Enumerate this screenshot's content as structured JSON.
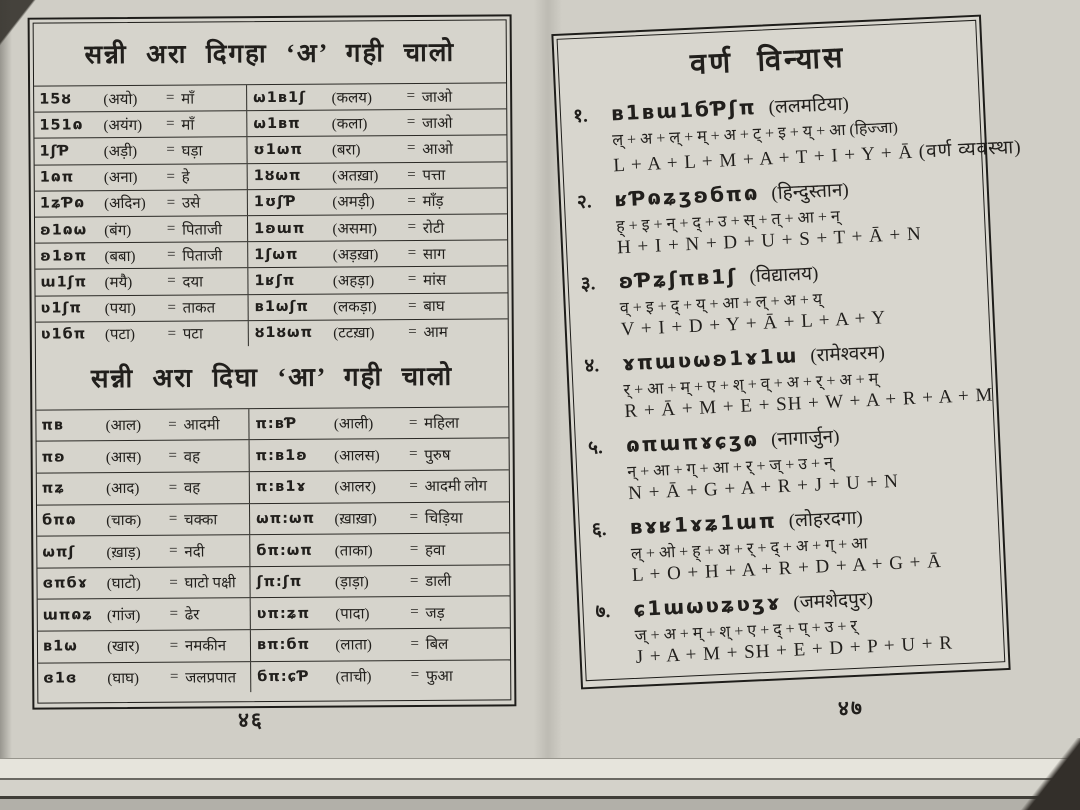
{
  "colors": {
    "paper": "#d6d4cc",
    "ink": "#211f1c",
    "shadow": "#45423c"
  },
  "ui": {
    "equals": "="
  },
  "left": {
    "page_number": "४६",
    "section_a": {
      "title": "सन्नी अरा दिगहा ‘अ’ गही चालो",
      "rows": [
        {
          "c1": {
            "script": "15ȣ",
            "roman": "(अयो)",
            "meaning": "माँ"
          },
          "c2": {
            "script": "ω1ʙ1ʃ",
            "roman": "(कलय)",
            "meaning": "जाओ"
          }
        },
        {
          "c1": {
            "script": "151ɷ",
            "roman": "(अयंग)",
            "meaning": "माँ"
          },
          "c2": {
            "script": "ω1ʙπ",
            "roman": "(कला)",
            "meaning": "जाओ"
          }
        },
        {
          "c1": {
            "script": "1ʃƤ",
            "roman": "(अड़ी)",
            "meaning": "घड़ा"
          },
          "c2": {
            "script": "ʊ1ωπ",
            "roman": "(बरा)",
            "meaning": "आओ"
          }
        },
        {
          "c1": {
            "script": "1ɷπ",
            "roman": "(अना)",
            "meaning": "हे"
          },
          "c2": {
            "script": "1ȣωπ",
            "roman": "(अतख़ा)",
            "meaning": "पत्ता"
          }
        },
        {
          "c1": {
            "script": "1ʑƤɷ",
            "roman": "(अदिन)",
            "meaning": "उसे"
          },
          "c2": {
            "script": "1ʊʃƤ",
            "roman": "(अमड़ी)",
            "meaning": "माँड़"
          }
        },
        {
          "c1": {
            "script": "ʚ1ɷω",
            "roman": "(बंग)",
            "meaning": "पिताजी"
          },
          "c2": {
            "script": "1ʚɯπ",
            "roman": "(असमा)",
            "meaning": "रोटी"
          }
        },
        {
          "c1": {
            "script": "ʚ1ʚπ",
            "roman": "(बबा)",
            "meaning": "पिताजी"
          },
          "c2": {
            "script": "1ʃωπ",
            "roman": "(अड़ख़ा)",
            "meaning": "साग"
          }
        },
        {
          "c1": {
            "script": "ɯ1ʃπ",
            "roman": "(मयै)",
            "meaning": "दया"
          },
          "c2": {
            "script": "1ʁʃπ",
            "roman": "(अहड़ा)",
            "meaning": "मांस"
          }
        },
        {
          "c1": {
            "script": "ʋ1ʃπ",
            "roman": "(पया)",
            "meaning": "ताकत"
          },
          "c2": {
            "script": "ʙ1ωʃπ",
            "roman": "(लकड़ा)",
            "meaning": "बाघ"
          }
        },
        {
          "c1": {
            "script": "ʋ1бπ",
            "roman": "(पटा)",
            "meaning": "पटा"
          },
          "c2": {
            "script": "ȣ1ȣωπ",
            "roman": "(टटख़ा)",
            "meaning": "आम"
          }
        }
      ]
    },
    "section_aa": {
      "title": "सन्नी अरा दिघा ‘आ’ गही चालो",
      "rows": [
        {
          "c1": {
            "script": "πʙ",
            "roman": "(आल)",
            "meaning": "आदमी"
          },
          "c2": {
            "script": "π:ʙƤ",
            "roman": "(आली)",
            "meaning": "महिला"
          }
        },
        {
          "c1": {
            "script": "πʚ",
            "roman": "(आस)",
            "meaning": "वह"
          },
          "c2": {
            "script": "π:ʙ1ʚ",
            "roman": "(आलस)",
            "meaning": "पुरुष"
          }
        },
        {
          "c1": {
            "script": "πʑ",
            "roman": "(आद)",
            "meaning": "वह"
          },
          "c2": {
            "script": "π:ʙ1ɤ",
            "roman": "(आलर)",
            "meaning": "आदमी लोग"
          }
        },
        {
          "c1": {
            "script": "бπɷ",
            "roman": "(चाक)",
            "meaning": "चक्का"
          },
          "c2": {
            "script": "ωπ:ωπ",
            "roman": "(ख़ाख़ा)",
            "meaning": "चिड़िया"
          }
        },
        {
          "c1": {
            "script": "ωπʃ",
            "roman": "(ख़ाड़)",
            "meaning": "नदी"
          },
          "c2": {
            "script": "бπ:ωπ",
            "roman": "(ताका)",
            "meaning": "हवा"
          }
        },
        {
          "c1": {
            "script": "ɞπбɤ",
            "roman": "(घाटो)",
            "meaning": "घाटो पक्षी"
          },
          "c2": {
            "script": "ʃπ:ʃπ",
            "roman": "(ड़ाड़ा)",
            "meaning": "डाली"
          }
        },
        {
          "c1": {
            "script": "ɯπɷʑ",
            "roman": "(गांज)",
            "meaning": "ढेर"
          },
          "c2": {
            "script": "ʋπ:ʑπ",
            "roman": "(पादा)",
            "meaning": "जड़"
          }
        },
        {
          "c1": {
            "script": "ʙ1ω",
            "roman": "(खार)",
            "meaning": "नमकीन"
          },
          "c2": {
            "script": "ʙπ:бπ",
            "roman": "(लाता)",
            "meaning": "बिल"
          }
        },
        {
          "c1": {
            "script": "ɞ1ɞ",
            "roman": "(घाघ)",
            "meaning": "जलप्रपात"
          },
          "c2": {
            "script": "бπ:ɕƤ",
            "roman": "(ताची)",
            "meaning": "फुआ"
          }
        }
      ]
    }
  },
  "right": {
    "title": "वर्ण विन्यास",
    "page_number": "४७",
    "entries": [
      {
        "num": "१.",
        "script": "ʙ1ʙɯ1бƤʃπ",
        "name": "(ललमटिया)",
        "dev": "ल् + अ + ल् + म् + अ + ट् + इ + य् + आ (हिज्जा)",
        "lat": "L + A + L + M + A + T + I + Y + Ā (वर्ण व्यवस्था)"
      },
      {
        "num": "२.",
        "script": "ʁƤɷʑʒʚбπɷ",
        "name": "(हिन्दुस्तान)",
        "dev": "ह् + इ + न् + द् + उ + स् + त् + आ + न्",
        "lat": "H + I + N + D + U + S + T + Ā + N"
      },
      {
        "num": "३.",
        "script": "ʚƤʑʃπʙ1ʃ",
        "name": "(विद्यालय)",
        "dev": "व् + इ + द् + य् + आ + ल् + अ + य्",
        "lat": "V + I + D + Y + Ā + L + A + Y"
      },
      {
        "num": "४.",
        "script": "ɤπɯʋωʚ1ɤ1ɯ",
        "name": "(रामेश्वरम)",
        "dev": "र् + आ + म् + ए + श् + व् + अ + र् + अ + म्",
        "lat": "R + Ā + M + E + SH + W + A + R + A + M"
      },
      {
        "num": "५.",
        "script": "ɷπɯπɤɕʒɷ",
        "name": "(नागार्जुन)",
        "dev": "न् + आ + ग् + आ + र् + ज् + उ + न्",
        "lat": "N + Ā + G + A + R + J + U + N"
      },
      {
        "num": "६.",
        "script": "ʙɤʁ1ɤʑ1ɯπ",
        "name": "(लोहरदगा)",
        "dev": "ल् + ओ + ह् + अ + र् + द् + अ + ग् + आ",
        "lat": "L + O + H + A + R + D + A + G + Ā"
      },
      {
        "num": "७.",
        "script": "ɕ1ɯωʋʑʋʒɤ",
        "name": "(जमशेदपुर)",
        "dev": "ज् + अ + म् + श् + ए + द् + प् + उ + र्",
        "lat": "J + A + M + SH + E + D + P + U + R"
      }
    ]
  }
}
